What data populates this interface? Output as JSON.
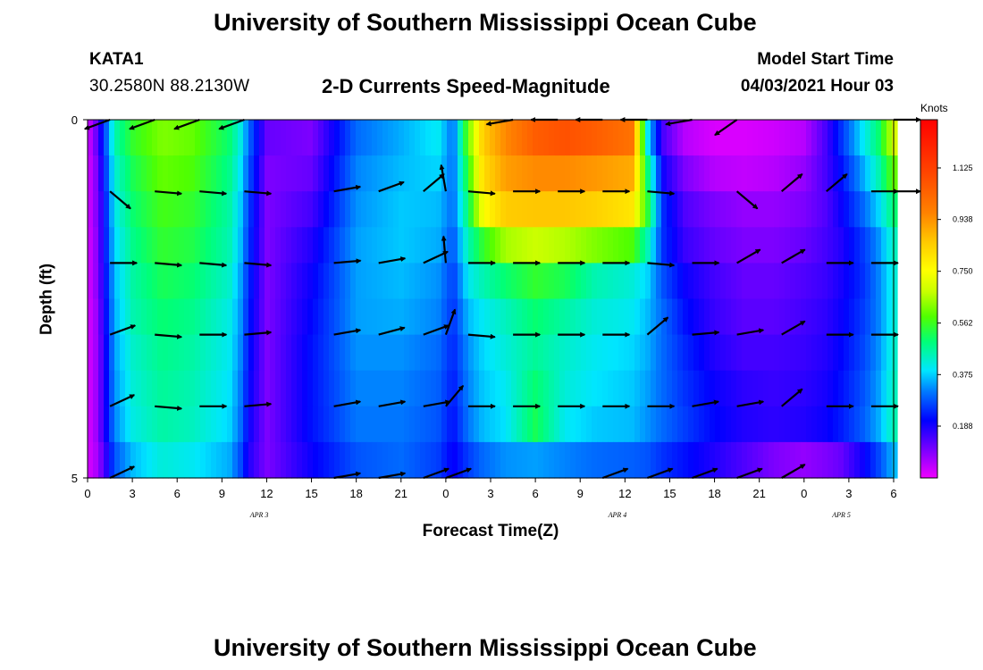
{
  "header": {
    "title": "University of Southern Mississippi Ocean Cube",
    "footer_title": "University of Southern Mississippi Ocean Cube",
    "station": "KATA1",
    "coords": "30.2580N  88.2130W",
    "subtitle": "2-D Currents Speed-Magnitude",
    "model_start_label": "Model Start Time",
    "model_start_value": "04/03/2021 Hour 03"
  },
  "chart_data": {
    "type": "heatmap",
    "title": "2-D Currents Speed-Magnitude",
    "xlabel": "Forecast Time(Z)",
    "ylabel": "Depth (ft)",
    "x_ticks": [
      "0",
      "3",
      "6",
      "9",
      "12",
      "15",
      "18",
      "21",
      "0",
      "3",
      "6",
      "9",
      "12",
      "15",
      "18",
      "21",
      "0",
      "3",
      "6"
    ],
    "x_tick_hours": [
      0,
      3,
      6,
      9,
      12,
      15,
      18,
      21,
      24,
      27,
      30,
      33,
      36,
      39,
      42,
      45,
      48,
      51,
      54
    ],
    "x_range_hours": [
      0,
      54
    ],
    "day_labels": [
      {
        "text": "APR 3",
        "hour": 11.5
      },
      {
        "text": "APR 4",
        "hour": 35.5
      },
      {
        "text": "APR 5",
        "hour": 50.5
      }
    ],
    "y_ticks": [
      "0",
      "5"
    ],
    "y_range_ft": [
      0,
      5
    ],
    "colorbar": {
      "units": "Knots",
      "labels": [
        "1.125",
        "0.938",
        "0.750",
        "0.562",
        "0.375",
        "0.188"
      ],
      "label_values": [
        1.125,
        0.938,
        0.75,
        0.562,
        0.375,
        0.188
      ],
      "range": [
        0,
        1.3
      ]
    },
    "depth_rows_ft": [
      0.25,
      0.75,
      1.25,
      1.75,
      2.25,
      2.75,
      3.25,
      3.75,
      4.25,
      4.75
    ],
    "speed_profiles": [
      {
        "hours": [
          0,
          0.5,
          1,
          1.8,
          3,
          5,
          7,
          9.5,
          10.2,
          10.8,
          12,
          15,
          18,
          21,
          23.5,
          24.5,
          25.5,
          26.5,
          28,
          30,
          32,
          34,
          36.5,
          37.5,
          38.5,
          40,
          42,
          44,
          46,
          48,
          49.5,
          50.5,
          52,
          53,
          54
        ],
        "speeds": [
          0.02,
          0.1,
          0.22,
          0.45,
          0.55,
          0.62,
          0.6,
          0.5,
          0.42,
          0.3,
          0.12,
          0.1,
          0.3,
          0.35,
          0.4,
          0.3,
          0.6,
          0.85,
          0.95,
          1.05,
          1.08,
          1.05,
          1.0,
          0.4,
          0.15,
          0.05,
          0.02,
          0.02,
          0.03,
          0.05,
          0.15,
          0.25,
          0.4,
          0.5,
          0.7
        ]
      },
      {
        "hours": [
          0,
          0.5,
          1,
          1.8,
          3,
          5,
          7,
          9.5,
          10.2,
          10.8,
          12,
          15,
          18,
          21,
          23.5,
          24.5,
          25.5,
          26.5,
          28,
          30,
          32,
          34,
          36.5,
          37.5,
          38.5,
          40,
          42,
          44,
          46,
          48,
          49.5,
          50.5,
          52,
          53,
          54
        ],
        "speeds": [
          0.02,
          0.08,
          0.2,
          0.42,
          0.52,
          0.6,
          0.58,
          0.48,
          0.4,
          0.28,
          0.1,
          0.12,
          0.32,
          0.36,
          0.38,
          0.3,
          0.55,
          0.82,
          0.92,
          0.95,
          0.95,
          0.93,
          0.9,
          0.5,
          0.2,
          0.1,
          0.05,
          0.04,
          0.05,
          0.08,
          0.15,
          0.22,
          0.35,
          0.45,
          0.6
        ]
      },
      {
        "hours": [
          0,
          0.5,
          1,
          1.8,
          3,
          5,
          7,
          9.5,
          10.2,
          10.8,
          12,
          15,
          18,
          21,
          23.5,
          24.5,
          25.5,
          26.5,
          28,
          30,
          32,
          34,
          36.5,
          37.5,
          38.5,
          40,
          42,
          44,
          46,
          48,
          49.5,
          50.5,
          52,
          53,
          54
        ],
        "speeds": [
          0.02,
          0.08,
          0.18,
          0.4,
          0.5,
          0.57,
          0.55,
          0.46,
          0.38,
          0.26,
          0.1,
          0.15,
          0.33,
          0.37,
          0.36,
          0.3,
          0.5,
          0.75,
          0.85,
          0.86,
          0.86,
          0.84,
          0.8,
          0.55,
          0.25,
          0.14,
          0.1,
          0.08,
          0.08,
          0.1,
          0.14,
          0.2,
          0.3,
          0.38,
          0.5
        ]
      },
      {
        "hours": [
          0,
          0.5,
          1,
          1.8,
          3,
          5,
          7,
          9.5,
          10.2,
          10.8,
          12,
          15,
          18,
          21,
          23.5,
          24.5,
          25.5,
          26.5,
          28,
          30,
          32,
          34,
          36.5,
          37.5,
          38.5,
          40,
          42,
          44,
          46,
          48,
          49.5,
          50.5,
          52,
          53,
          54
        ],
        "speeds": [
          0.02,
          0.07,
          0.18,
          0.38,
          0.48,
          0.55,
          0.53,
          0.45,
          0.37,
          0.25,
          0.1,
          0.18,
          0.34,
          0.37,
          0.35,
          0.28,
          0.45,
          0.55,
          0.65,
          0.68,
          0.66,
          0.62,
          0.58,
          0.45,
          0.25,
          0.16,
          0.12,
          0.1,
          0.1,
          0.12,
          0.15,
          0.18,
          0.26,
          0.33,
          0.44
        ]
      },
      {
        "hours": [
          0,
          0.5,
          1,
          1.8,
          3,
          5,
          7,
          9.5,
          10.2,
          10.8,
          12,
          15,
          18,
          21,
          23.5,
          24.5,
          25.5,
          26.5,
          28,
          30,
          32,
          34,
          36.5,
          37.5,
          38.5,
          40,
          42,
          44,
          46,
          48,
          49.5,
          50.5,
          52,
          53,
          54
        ],
        "speeds": [
          0.02,
          0.07,
          0.17,
          0.36,
          0.46,
          0.52,
          0.5,
          0.43,
          0.35,
          0.24,
          0.1,
          0.2,
          0.34,
          0.36,
          0.33,
          0.26,
          0.4,
          0.45,
          0.5,
          0.55,
          0.52,
          0.45,
          0.42,
          0.38,
          0.28,
          0.2,
          0.15,
          0.12,
          0.12,
          0.14,
          0.16,
          0.19,
          0.25,
          0.32,
          0.42
        ]
      },
      {
        "hours": [
          0,
          0.5,
          1,
          1.8,
          3,
          5,
          7,
          9.5,
          10.2,
          10.8,
          12,
          15,
          18,
          21,
          23.5,
          24.5,
          25.5,
          26.5,
          28,
          30,
          32,
          34,
          36.5,
          37.5,
          38.5,
          40,
          42,
          44,
          46,
          48,
          49.5,
          50.5,
          52,
          53,
          54
        ],
        "speeds": [
          0.02,
          0.06,
          0.16,
          0.35,
          0.45,
          0.5,
          0.48,
          0.41,
          0.34,
          0.23,
          0.1,
          0.21,
          0.34,
          0.35,
          0.32,
          0.25,
          0.36,
          0.4,
          0.44,
          0.5,
          0.46,
          0.42,
          0.4,
          0.36,
          0.3,
          0.22,
          0.16,
          0.13,
          0.13,
          0.15,
          0.17,
          0.2,
          0.26,
          0.32,
          0.42
        ]
      },
      {
        "hours": [
          0,
          0.5,
          1,
          1.8,
          3,
          5,
          7,
          9.5,
          10.2,
          10.8,
          12,
          15,
          18,
          21,
          23.5,
          24.5,
          25.5,
          26.5,
          28,
          30,
          32,
          34,
          36.5,
          37.5,
          38.5,
          40,
          42,
          44,
          46,
          48,
          49.5,
          50.5,
          52,
          53,
          54
        ],
        "speeds": [
          0.02,
          0.06,
          0.15,
          0.34,
          0.43,
          0.48,
          0.46,
          0.4,
          0.33,
          0.22,
          0.1,
          0.22,
          0.33,
          0.33,
          0.3,
          0.24,
          0.33,
          0.38,
          0.42,
          0.47,
          0.43,
          0.4,
          0.38,
          0.35,
          0.3,
          0.24,
          0.18,
          0.15,
          0.15,
          0.16,
          0.18,
          0.21,
          0.27,
          0.33,
          0.43
        ]
      },
      {
        "hours": [
          0,
          0.5,
          1,
          1.8,
          3,
          5,
          7,
          9.5,
          10.2,
          10.8,
          12,
          15,
          18,
          21,
          23.5,
          24.5,
          25.5,
          26.5,
          28,
          30,
          32,
          34,
          36.5,
          37.5,
          38.5,
          40,
          42,
          44,
          46,
          48,
          49.5,
          50.5,
          52,
          53,
          54
        ],
        "speeds": [
          0.02,
          0.06,
          0.15,
          0.33,
          0.42,
          0.47,
          0.45,
          0.39,
          0.32,
          0.21,
          0.1,
          0.22,
          0.32,
          0.32,
          0.29,
          0.23,
          0.32,
          0.37,
          0.4,
          0.5,
          0.42,
          0.39,
          0.37,
          0.34,
          0.3,
          0.25,
          0.2,
          0.17,
          0.16,
          0.17,
          0.19,
          0.22,
          0.28,
          0.34,
          0.44
        ]
      },
      {
        "hours": [
          0,
          0.5,
          1,
          1.8,
          3,
          5,
          7,
          9.5,
          10.2,
          10.8,
          12,
          15,
          18,
          21,
          23.5,
          24.5,
          25.5,
          26.5,
          28,
          30,
          32,
          34,
          36.5,
          37.5,
          38.5,
          40,
          42,
          44,
          46,
          48,
          49.5,
          50.5,
          52,
          53,
          54
        ],
        "speeds": [
          0.02,
          0.06,
          0.15,
          0.32,
          0.41,
          0.46,
          0.44,
          0.38,
          0.31,
          0.2,
          0.1,
          0.22,
          0.31,
          0.31,
          0.28,
          0.22,
          0.31,
          0.36,
          0.39,
          0.52,
          0.4,
          0.37,
          0.36,
          0.33,
          0.3,
          0.26,
          0.21,
          0.18,
          0.17,
          0.18,
          0.2,
          0.23,
          0.29,
          0.35,
          0.45
        ]
      },
      {
        "hours": [
          0,
          0.5,
          1,
          1.8,
          3,
          5,
          7,
          9.5,
          10.2,
          10.8,
          12,
          15,
          18,
          21,
          23.5,
          24.5,
          25.5,
          26.5,
          28,
          30,
          32,
          34,
          36.5,
          37.5,
          38.5,
          40,
          42,
          44,
          46,
          48,
          49.5,
          50.5,
          52,
          53,
          54
        ],
        "speeds": [
          0.02,
          0.05,
          0.12,
          0.28,
          0.36,
          0.42,
          0.4,
          0.35,
          0.28,
          0.18,
          0.1,
          0.2,
          0.28,
          0.3,
          0.26,
          0.2,
          0.26,
          0.3,
          0.33,
          0.34,
          0.32,
          0.3,
          0.29,
          0.28,
          0.25,
          0.22,
          0.18,
          0.14,
          0.1,
          0.08,
          0.1,
          0.12,
          0.2,
          0.27,
          0.36
        ]
      }
    ],
    "vector_depths_ft": [
      0,
      1,
      2,
      3,
      4,
      5
    ],
    "vector_hours": [
      1.5,
      4.5,
      7.5,
      10.5,
      16.5,
      19.5,
      22.5,
      24,
      25.5,
      28.5,
      31.5,
      34.5,
      37.5,
      40.5,
      43.5,
      46.5,
      49.5,
      52.5,
      54
    ],
    "vector_dirs_deg": [
      [
        200,
        200,
        200,
        200,
        null,
        null,
        null,
        null,
        null,
        190,
        180,
        180,
        180,
        190,
        215,
        null,
        null,
        null,
        360
      ],
      [
        320,
        355,
        355,
        355,
        10,
        20,
        40,
        100,
        355,
        360,
        360,
        360,
        355,
        null,
        320,
        40,
        40,
        360,
        360
      ],
      [
        360,
        355,
        355,
        355,
        5,
        10,
        25,
        95,
        0,
        360,
        360,
        360,
        355,
        360,
        30,
        30,
        360,
        360
      ],
      [
        20,
        355,
        360,
        5,
        10,
        15,
        20,
        70,
        355,
        360,
        360,
        360,
        40,
        5,
        10,
        30,
        360,
        360
      ],
      [
        25,
        355,
        360,
        5,
        10,
        10,
        10,
        50,
        0,
        360,
        360,
        360,
        360,
        10,
        10,
        40,
        360,
        360
      ],
      [
        25,
        null,
        null,
        null,
        10,
        10,
        20,
        20,
        null,
        null,
        null,
        20,
        20,
        20,
        20,
        30,
        null,
        null
      ]
    ]
  }
}
